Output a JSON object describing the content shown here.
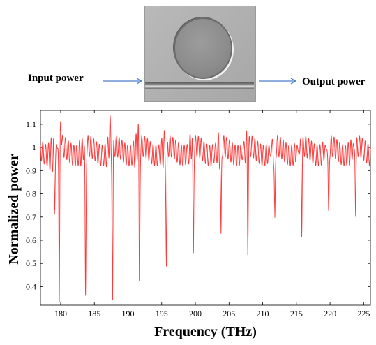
{
  "diagram": {
    "input_label": "Input power",
    "output_label": "Output power",
    "arrow_color": "#4f7fc9"
  },
  "chart_data": {
    "type": "line",
    "xlabel": "Frequency (THz)",
    "ylabel": "Normalized power",
    "xlim": [
      177,
      226
    ],
    "ylim": [
      0.32,
      1.16
    ],
    "xticks": [
      180,
      185,
      190,
      195,
      200,
      205,
      210,
      215,
      220,
      225
    ],
    "yticks": [
      0.4,
      0.5,
      0.6,
      0.7,
      0.8,
      0.9,
      1,
      1.1
    ],
    "ytick_labels": [
      "0.4",
      "0.5",
      "0.6",
      "0.7",
      "0.8",
      "0.9",
      "1",
      "1.1"
    ],
    "line_color": "#ff3b3b",
    "series": [
      {
        "resonance_dips": [
          {
            "x": 179.1,
            "y": 0.74
          },
          {
            "x": 179.8,
            "y": 0.34
          },
          {
            "x": 183.7,
            "y": 0.36
          },
          {
            "x": 187.7,
            "y": 0.32
          },
          {
            "x": 191.7,
            "y": 0.39
          },
          {
            "x": 195.7,
            "y": 0.49
          },
          {
            "x": 199.7,
            "y": 0.53
          },
          {
            "x": 203.8,
            "y": 0.57
          },
          {
            "x": 207.8,
            "y": 0.61
          },
          {
            "x": 211.8,
            "y": 0.64
          },
          {
            "x": 215.8,
            "y": 0.66
          },
          {
            "x": 219.8,
            "y": 0.68
          },
          {
            "x": 223.8,
            "y": 0.71
          }
        ],
        "peaks": [
          {
            "x": 180.0,
            "y": 1.15
          },
          {
            "x": 187.3,
            "y": 1.13
          },
          {
            "x": 191.5,
            "y": 1.1
          },
          {
            "x": 199.4,
            "y": 1.06
          }
        ]
      }
    ]
  }
}
